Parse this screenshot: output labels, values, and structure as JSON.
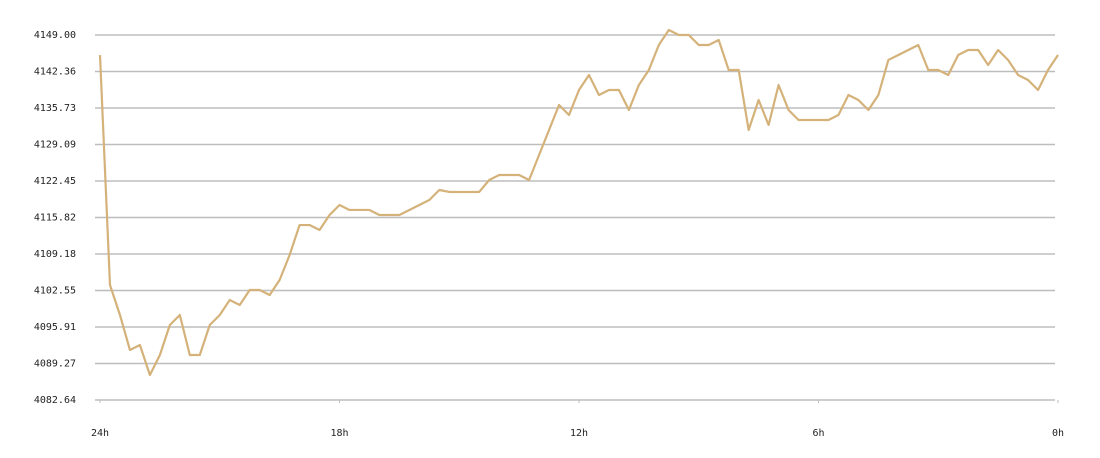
{
  "chart_data": {
    "type": "line",
    "x": [
      -24,
      -23.75,
      -23.5,
      -23.25,
      -23,
      -22.75,
      -22.5,
      -22.25,
      -22,
      -21.75,
      -21.5,
      -21.25,
      -21,
      -20.75,
      -20.5,
      -20.25,
      -20,
      -19.75,
      -19.5,
      -19.25,
      -19,
      -18.75,
      -18.5,
      -18.25,
      -18,
      -17.75,
      -17.5,
      -17.25,
      -17,
      -16.75,
      -16.5,
      -16.25,
      -16,
      -15.75,
      -15.5,
      -15.25,
      -15,
      -14.75,
      -14.5,
      -14.25,
      -14,
      -13.75,
      -13.5,
      -13.25,
      -13,
      -12.75,
      -12.5,
      -12.25,
      -12,
      -11.75,
      -11.5,
      -11.25,
      -11,
      -10.75,
      -10.5,
      -10.25,
      -10,
      -9.75,
      -9.5,
      -9.25,
      -9,
      -8.75,
      -8.5,
      -8.25,
      -8,
      -7.75,
      -7.5,
      -7.25,
      -7,
      -6.75,
      -6.5,
      -6.25,
      -6,
      -5.75,
      -5.5,
      -5.25,
      -5,
      -4.75,
      -4.5,
      -4.25,
      -4,
      -3.75,
      -3.5,
      -3.25,
      -3,
      -2.75,
      -2.5,
      -2.25,
      -2,
      -1.75,
      -1.5,
      -1.25,
      -1,
      -0.75,
      -0.5,
      -0.25,
      0
    ],
    "series": [
      {
        "color": "#d4b27a",
        "values": [
          4145.36,
          4103.55,
          4098.1,
          4091.73,
          4092.64,
          4087.19,
          4090.82,
          4096.28,
          4098.1,
          4090.82,
          4090.82,
          4096.28,
          4098.1,
          4100.82,
          4099.91,
          4102.64,
          4102.64,
          4101.73,
          4104.46,
          4109.0,
          4114.45,
          4114.45,
          4113.55,
          4116.28,
          4118.09,
          4117.19,
          4117.19,
          4117.19,
          4116.28,
          4116.28,
          4116.28,
          4117.19,
          4118.09,
          4119.0,
          4120.82,
          4120.46,
          4120.46,
          4120.46,
          4120.46,
          4122.64,
          4123.55,
          4123.55,
          4123.55,
          4122.64,
          4127.18,
          4131.73,
          4136.27,
          4134.46,
          4139.0,
          4141.73,
          4138.09,
          4139.0,
          4139.0,
          4135.36,
          4139.91,
          4142.64,
          4147.18,
          4149.91,
          4149.0,
          4149.0,
          4147.18,
          4147.18,
          4148.09,
          4142.64,
          4142.64,
          4131.73,
          4137.18,
          4132.64,
          4139.91,
          4135.36,
          4133.55,
          4133.55,
          4133.55,
          4133.55,
          4134.46,
          4138.09,
          4137.18,
          4135.36,
          4138.09,
          4144.45,
          4145.36,
          4146.27,
          4147.18,
          4142.64,
          4142.64,
          4141.73,
          4145.36,
          4146.27,
          4146.27,
          4143.55,
          4146.27,
          4144.45,
          4141.73,
          4140.82,
          4139.0,
          4142.64,
          4145.36
        ]
      }
    ],
    "xlim": [
      -24,
      0
    ],
    "xticks": [
      {
        "value": -24,
        "label": "24h"
      },
      {
        "value": -18,
        "label": "18h"
      },
      {
        "value": -12,
        "label": "12h"
      },
      {
        "value": -6,
        "label": "6h"
      },
      {
        "value": 0,
        "label": "0h"
      }
    ],
    "ylim": [
      4082.64,
      4149
    ],
    "yticks": [
      4082.64,
      4089.27,
      4095.91,
      4102.55,
      4109.18,
      4115.82,
      4122.45,
      4129.09,
      4135.73,
      4142.36,
      {
        "value": 4149,
        "label": "4149.00"
      }
    ],
    "grid": true
  }
}
